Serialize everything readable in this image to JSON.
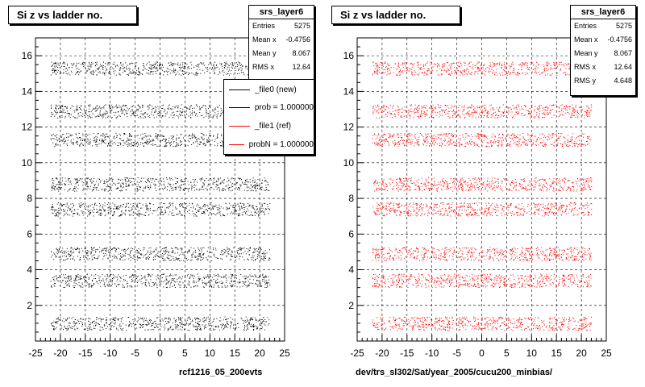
{
  "chart_data": [
    {
      "type": "scatter",
      "title": "Si z vs ladder no.",
      "xlabel": "rcf1216_05_200evts",
      "ylabel": "",
      "xlim": [
        -25,
        25
      ],
      "ylim": [
        0,
        17
      ],
      "x_ticks": [
        "-25",
        "-20",
        "-15",
        "-10",
        "-5",
        "0",
        "5",
        "10",
        "15",
        "20",
        "25"
      ],
      "y_ticks": [
        "2",
        "4",
        "6",
        "8",
        "10",
        "12",
        "14",
        "16"
      ],
      "grid": true,
      "point_color": "#000000",
      "point_x_range": [
        -22,
        22
      ],
      "band_centers": [
        1.0,
        3.4,
        4.9,
        7.4,
        8.8,
        11.3,
        12.9,
        15.3
      ],
      "stats": {
        "name": "srs_layer6",
        "rows": [
          {
            "label": "Entries",
            "value": "5275"
          },
          {
            "label": "Mean x",
            "value": "-0.4756"
          },
          {
            "label": "Mean y",
            "value": "8.067"
          },
          {
            "label": "RMS x",
            "value": "12.64"
          }
        ]
      },
      "legend": {
        "placement": "top-right",
        "entries": [
          {
            "label": "_file0 (new)",
            "color": "#000000"
          },
          {
            "label": "prob = 1.000000",
            "color": "#000000"
          },
          {
            "label": "_file1 (ref)",
            "color": "#ff0000"
          },
          {
            "label": "probN = 1.000000",
            "color": "#ff0000"
          }
        ]
      }
    },
    {
      "type": "scatter",
      "title": "Si z vs ladder no.",
      "xlabel": "dev/trs_sl302/Sat/year_2005/cucu200_minbias/",
      "ylabel": "",
      "xlim": [
        -25,
        25
      ],
      "ylim": [
        0,
        17
      ],
      "x_ticks": [
        "-25",
        "-20",
        "-15",
        "-10",
        "-5",
        "0",
        "5",
        "10",
        "15",
        "20",
        "25"
      ],
      "y_ticks": [
        "2",
        "4",
        "6",
        "8",
        "10",
        "12",
        "14",
        "16"
      ],
      "grid": true,
      "point_color": "#ff0000",
      "point_x_range": [
        -22,
        22
      ],
      "band_centers": [
        1.0,
        3.4,
        4.9,
        7.4,
        8.8,
        11.3,
        12.9,
        15.3
      ],
      "stats": {
        "name": "srs_layer6",
        "rows": [
          {
            "label": "Entries",
            "value": "5275"
          },
          {
            "label": "Mean x",
            "value": "-0.4756"
          },
          {
            "label": "Mean y",
            "value": "8.067"
          },
          {
            "label": "RMS x",
            "value": "12.64"
          },
          {
            "label": "RMS y",
            "value": "4.648"
          }
        ]
      }
    }
  ]
}
